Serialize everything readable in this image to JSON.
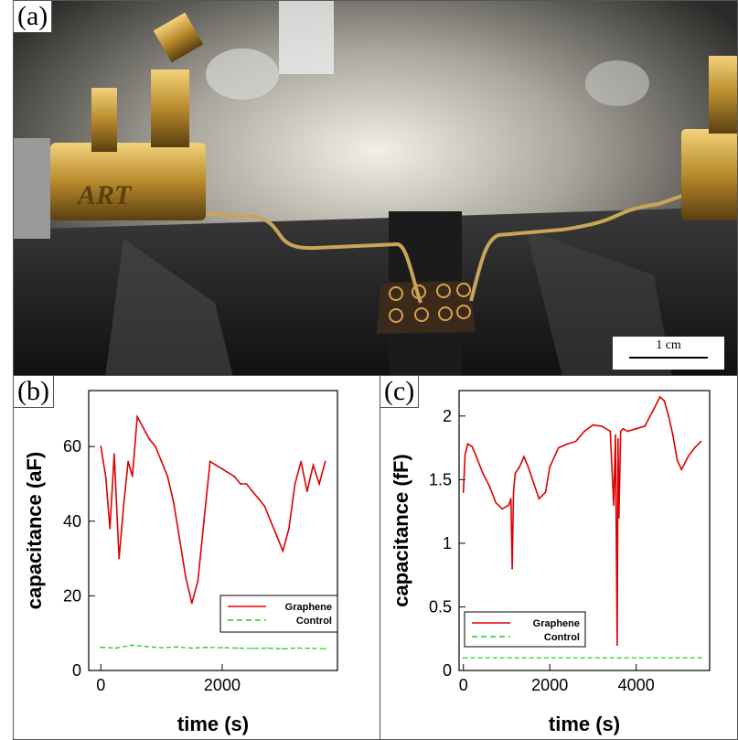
{
  "panels": {
    "a": {
      "label": "(a)",
      "brand_text": "ART",
      "scale_bar": "1 cm"
    },
    "b": {
      "label": "(b)"
    },
    "c": {
      "label": "(c)"
    }
  },
  "chart_data": [
    {
      "panel": "b",
      "type": "line",
      "xlabel": "time (s)",
      "ylabel": "capacitance (aF)",
      "xlim": [
        -200,
        3900
      ],
      "ylim": [
        0,
        75
      ],
      "xticks": [
        0,
        2000
      ],
      "yticks": [
        0,
        20,
        40,
        60
      ],
      "legend_position": "lower-right",
      "series": [
        {
          "name": "Graphene",
          "color": "#dd0000",
          "style": "solid",
          "x": [
            0,
            80,
            150,
            220,
            300,
            380,
            450,
            520,
            600,
            700,
            800,
            900,
            1000,
            1100,
            1200,
            1300,
            1400,
            1500,
            1600,
            1700,
            1800,
            1900,
            2000,
            2100,
            2200,
            2300,
            2400,
            2500,
            2600,
            2700,
            2800,
            2900,
            3000,
            3100,
            3200,
            3300,
            3400,
            3500,
            3600,
            3700
          ],
          "y": [
            60,
            52,
            38,
            58,
            30,
            45,
            56,
            52,
            68,
            65,
            62,
            60,
            56,
            52,
            45,
            35,
            25,
            18,
            24,
            40,
            56,
            55,
            54,
            53,
            52,
            50,
            50,
            48,
            46,
            44,
            40,
            36,
            32,
            38,
            50,
            56,
            48,
            55,
            50,
            56
          ]
        },
        {
          "name": "Control",
          "color": "#22cc22",
          "style": "dashed",
          "x": [
            0,
            250,
            500,
            750,
            1000,
            1250,
            1500,
            1750,
            2000,
            2250,
            2500,
            2750,
            3000,
            3250,
            3500,
            3700
          ],
          "y": [
            6.2,
            6.0,
            6.8,
            6.4,
            6.1,
            6.3,
            6.0,
            6.2,
            6.1,
            6.0,
            5.9,
            6.0,
            5.8,
            6.0,
            5.9,
            5.8
          ]
        }
      ]
    },
    {
      "panel": "c",
      "type": "line",
      "xlabel": "time (s)",
      "ylabel": "capacitance (fF)",
      "xlim": [
        -100,
        5700
      ],
      "ylim": [
        0,
        2.2
      ],
      "xticks": [
        0,
        2000,
        4000
      ],
      "yticks": [
        0,
        0.5,
        1,
        1.5,
        2
      ],
      "legend_position": "lower-left",
      "series": [
        {
          "name": "Graphene",
          "color": "#dd0000",
          "style": "solid",
          "x": [
            0,
            40,
            100,
            200,
            300,
            450,
            600,
            750,
            900,
            1050,
            1100,
            1130,
            1160,
            1200,
            1300,
            1400,
            1500,
            1600,
            1750,
            1900,
            2000,
            2200,
            2400,
            2600,
            2800,
            3000,
            3200,
            3400,
            3480,
            3520,
            3560,
            3580,
            3600,
            3640,
            3700,
            3800,
            4000,
            4200,
            4400,
            4550,
            4650,
            4750,
            4850,
            4950,
            5050,
            5200,
            5350,
            5500
          ],
          "y": [
            1.4,
            1.7,
            1.78,
            1.76,
            1.68,
            1.55,
            1.45,
            1.32,
            1.27,
            1.3,
            1.35,
            0.8,
            1.4,
            1.55,
            1.6,
            1.68,
            1.6,
            1.5,
            1.35,
            1.4,
            1.6,
            1.75,
            1.78,
            1.8,
            1.88,
            1.93,
            1.92,
            1.88,
            1.3,
            1.85,
            0.2,
            1.82,
            1.2,
            1.88,
            1.9,
            1.88,
            1.9,
            1.92,
            2.05,
            2.15,
            2.12,
            2.0,
            1.85,
            1.65,
            1.58,
            1.68,
            1.75,
            1.8
          ]
        },
        {
          "name": "Control",
          "color": "#22cc22",
          "style": "dashed",
          "x": [
            0,
            5500
          ],
          "y": [
            0.1,
            0.1
          ]
        }
      ]
    }
  ]
}
